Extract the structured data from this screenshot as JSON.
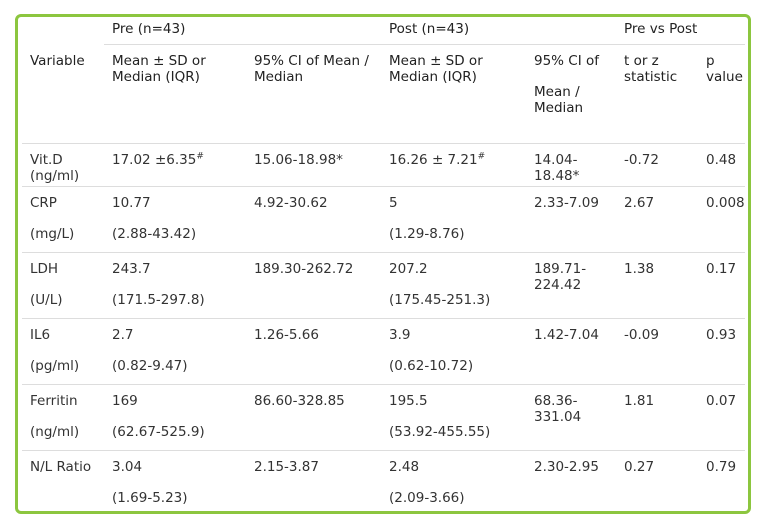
{
  "table": {
    "group_headers": [
      "Pre (n=43)",
      "Post (n=43)",
      "Pre vs Post"
    ],
    "column_headers": [
      [
        "Variable"
      ],
      [
        "Mean ± SD or Median (IQR)"
      ],
      [
        "95% CI of Mean / Median"
      ],
      [
        "Mean ± SD or Median (IQR)"
      ],
      [
        "95% CI of",
        "Mean / Median"
      ],
      [
        "t or z statistic"
      ],
      [
        "p value"
      ]
    ],
    "rows": [
      [
        [
          "Vit.D (ng/ml)"
        ],
        [
          {
            "text": "17.02 ±6.35",
            "sup": "#"
          }
        ],
        [
          "15.06-18.98*"
        ],
        [
          {
            "text": "16.26 ± 7.21",
            "sup": "#"
          }
        ],
        [
          "14.04-18.48*"
        ],
        [
          "-0.72"
        ],
        [
          "0.48"
        ]
      ],
      [
        [
          "CRP",
          "(mg/L)"
        ],
        [
          "10.77",
          "(2.88-43.42)"
        ],
        [
          "4.92-30.62"
        ],
        [
          "5",
          "(1.29-8.76)"
        ],
        [
          "2.33-7.09"
        ],
        [
          "2.67"
        ],
        [
          "0.008"
        ]
      ],
      [
        [
          "LDH",
          "(U/L)"
        ],
        [
          "243.7",
          "(171.5-297.8)"
        ],
        [
          "189.30-262.72"
        ],
        [
          "207.2",
          "(175.45-251.3)"
        ],
        [
          "189.71-224.42"
        ],
        [
          "1.38"
        ],
        [
          "0.17"
        ]
      ],
      [
        [
          "IL6",
          "(pg/ml)"
        ],
        [
          "2.7",
          "(0.82-9.47)"
        ],
        [
          "1.26-5.66"
        ],
        [
          "3.9",
          "(0.62-10.72)"
        ],
        [
          "1.42-7.04"
        ],
        [
          "-0.09"
        ],
        [
          "0.93"
        ]
      ],
      [
        [
          "Ferritin",
          "(ng/ml)"
        ],
        [
          "169",
          "(62.67-525.9)"
        ],
        [
          "86.60-328.85"
        ],
        [
          "195.5",
          "(53.92-455.55)"
        ],
        [
          "68.36-331.04"
        ],
        [
          "1.81"
        ],
        [
          "0.07"
        ]
      ],
      [
        [
          "N/L Ratio"
        ],
        [
          "3.04",
          "(1.69-5.23)"
        ],
        [
          "2.15-3.87"
        ],
        [
          "2.48",
          "(2.09-3.66)"
        ],
        [
          "2.30-2.95"
        ],
        [
          "0.27"
        ],
        [
          "0.79"
        ]
      ]
    ]
  }
}
